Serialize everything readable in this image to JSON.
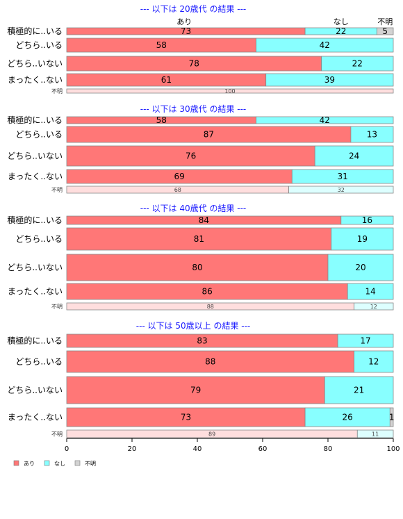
{
  "chart_data": {
    "type": "bar",
    "orientation": "horizontal",
    "stacked": "percent",
    "series_names": [
      "あり",
      "なし",
      "不明"
    ],
    "colors": {
      "あり": "#ff7777",
      "なし": "#88ffff",
      "不明": "#d3d3d3",
      "あり_light": "#ffdede",
      "なし_light": "#ddffff",
      "title": "#1a1aff"
    },
    "xlim": [
      0,
      100
    ],
    "xticks": [
      0,
      20,
      40,
      60,
      80,
      100
    ],
    "legend_position": "bottom-left",
    "grid": false,
    "top_legend_labels": [
      "あり",
      "なし",
      "不明"
    ],
    "panels": [
      {
        "title": "--- 以下は 20歳代 の結果 ---",
        "rows": [
          {
            "label": "積極的に..いる",
            "values": [
              73,
              22,
              5
            ]
          },
          {
            "label": "どちら..いる",
            "values": [
              58,
              42,
              0
            ]
          },
          {
            "label": "どちら..いない",
            "values": [
              78,
              22,
              0
            ]
          },
          {
            "label": "まったく..ない",
            "values": [
              61,
              39,
              0
            ]
          },
          {
            "label": "不明",
            "values": [
              100,
              0,
              0
            ]
          }
        ]
      },
      {
        "title": "--- 以下は 30歳代 の結果 ---",
        "rows": [
          {
            "label": "積極的に..いる",
            "values": [
              58,
              42,
              0
            ]
          },
          {
            "label": "どちら..いる",
            "values": [
              87,
              13,
              0
            ]
          },
          {
            "label": "どちら..いない",
            "values": [
              76,
              24,
              0
            ]
          },
          {
            "label": "まったく..ない",
            "values": [
              69,
              31,
              0
            ]
          },
          {
            "label": "不明",
            "values": [
              68,
              32,
              0
            ]
          }
        ]
      },
      {
        "title": "--- 以下は 40歳代 の結果 ---",
        "rows": [
          {
            "label": "積極的に..いる",
            "values": [
              84,
              16,
              0
            ]
          },
          {
            "label": "どちら..いる",
            "values": [
              81,
              19,
              0
            ]
          },
          {
            "label": "どちら..いない",
            "values": [
              80,
              20,
              0
            ]
          },
          {
            "label": "まったく..ない",
            "values": [
              86,
              14,
              0
            ]
          },
          {
            "label": "不明",
            "values": [
              88,
              12,
              0
            ]
          }
        ]
      },
      {
        "title": "--- 以下は 50歳以上 の結果 ---",
        "rows": [
          {
            "label": "積極的に..いる",
            "values": [
              83,
              17,
              0
            ]
          },
          {
            "label": "どちら..いる",
            "values": [
              88,
              12,
              0
            ]
          },
          {
            "label": "どちら..いない",
            "values": [
              79,
              21,
              0
            ]
          },
          {
            "label": "まったく..ない",
            "values": [
              73,
              26,
              1
            ]
          },
          {
            "label": "不明",
            "values": [
              89,
              11,
              0
            ]
          }
        ]
      }
    ]
  }
}
